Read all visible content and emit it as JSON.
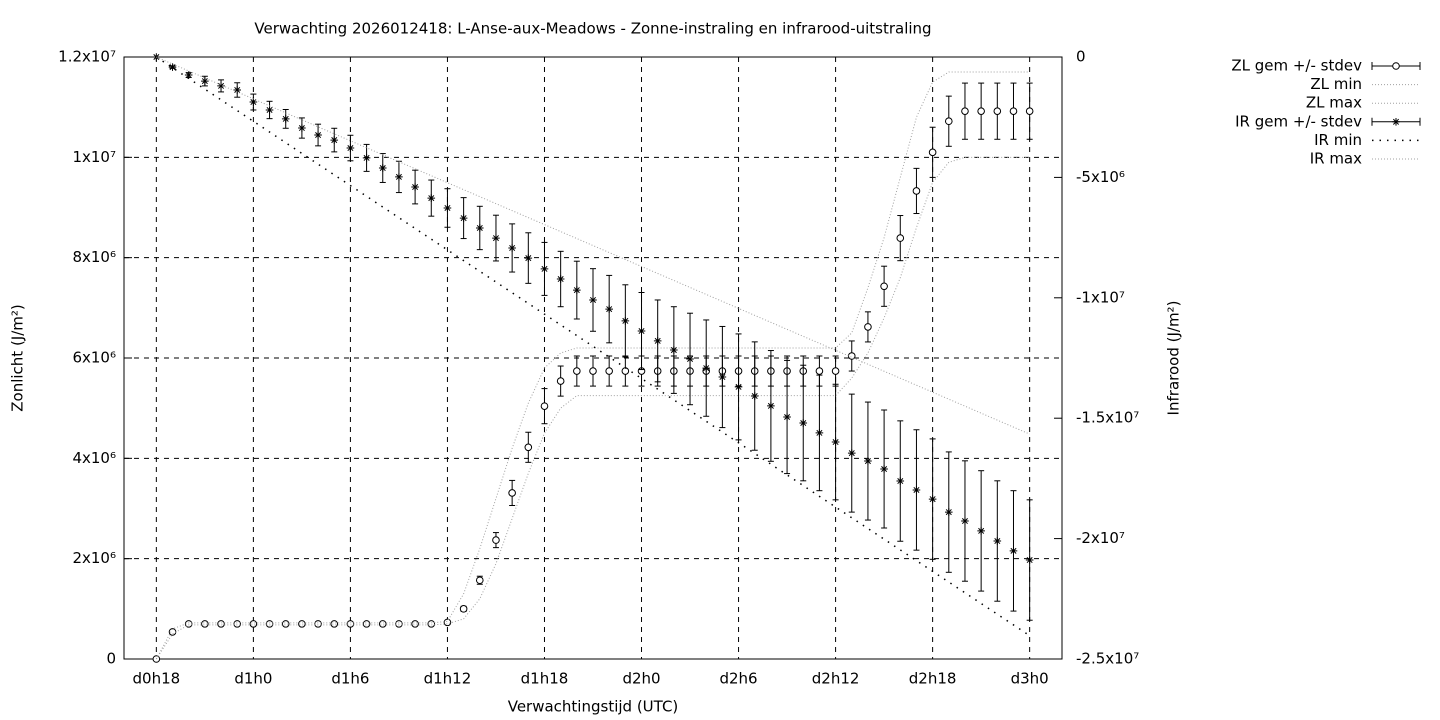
{
  "chart_data": {
    "type": "errorbar",
    "title": "Verwachting 2026012418: L-Anse-aux-Meadows - Zonne-instraling en infrarood-uitstraling",
    "xlabel": "Verwachtingstijd (UTC)",
    "ylabel": "Zonlicht (J/m²)",
    "y2label": "Infrarood (J/m²)",
    "grid": true,
    "legend": "outside-top-right",
    "xlim": [
      16,
      74
    ],
    "xticks": [
      {
        "value": 18,
        "label": "d0h18"
      },
      {
        "value": 24,
        "label": "d1h0"
      },
      {
        "value": 30,
        "label": "d1h6"
      },
      {
        "value": 36,
        "label": "d1h12"
      },
      {
        "value": 42,
        "label": "d1h18"
      },
      {
        "value": 48,
        "label": "d2h0"
      },
      {
        "value": 54,
        "label": "d2h6"
      },
      {
        "value": 60,
        "label": "d2h12"
      },
      {
        "value": 66,
        "label": "d2h18"
      },
      {
        "value": 72,
        "label": "d3h0"
      }
    ],
    "ylim": [
      0,
      12000000
    ],
    "yticks": [
      0,
      {
        "value": 2000000,
        "label": "2x10⁶"
      },
      {
        "value": 4000000,
        "label": "4x10⁶"
      },
      {
        "value": 6000000,
        "label": "6x10⁶"
      },
      {
        "value": 8000000,
        "label": "8x10⁶"
      },
      {
        "value": 10000000,
        "label": "1x10⁷"
      },
      {
        "value": 12000000,
        "label": "1.2x10⁷"
      }
    ],
    "y2lim": [
      -25000000,
      0
    ],
    "y2ticks": [
      0,
      {
        "value": -5000000,
        "label": "-5x10⁶"
      },
      {
        "value": -10000000,
        "label": "-1x10⁷"
      },
      {
        "value": -15000000,
        "label": "-1.5x10⁷"
      },
      {
        "value": -20000000,
        "label": "-2x10⁷"
      },
      {
        "value": -25000000,
        "label": "-2.5x10⁷"
      }
    ],
    "x": [
      18,
      19,
      20,
      21,
      22,
      23,
      24,
      25,
      26,
      27,
      28,
      29,
      30,
      31,
      32,
      33,
      34,
      35,
      36,
      37,
      38,
      39,
      40,
      41,
      42,
      43,
      44,
      45,
      46,
      47,
      48,
      49,
      50,
      51,
      52,
      53,
      54,
      55,
      56,
      57,
      58,
      59,
      60,
      61,
      62,
      63,
      64,
      65,
      66,
      67,
      68,
      69,
      70,
      71,
      72
    ],
    "series": [
      {
        "name": "ZL gem +/- stdev",
        "color": "#000000",
        "marker": "circle",
        "values": [
          0,
          540000,
          700000,
          700000,
          700000,
          700000,
          700000,
          700000,
          700000,
          700000,
          700000,
          700000,
          700000,
          700000,
          700000,
          700000,
          700000,
          700000,
          730000,
          1000000,
          1570000,
          2370000,
          3310000,
          4220000,
          5040000,
          5540000,
          5740000,
          5740000,
          5740000,
          5740000,
          5740000,
          5740000,
          5740000,
          5740000,
          5740000,
          5740000,
          5740000,
          5740000,
          5740000,
          5740000,
          5740000,
          5740000,
          5740000,
          6040000,
          6620000,
          7430000,
          8390000,
          9330000,
          10100000,
          10720000,
          10920000,
          10920000,
          10920000,
          10920000,
          10920000
        ],
        "errors": [
          0,
          20000,
          20000,
          20000,
          20000,
          20000,
          20000,
          20000,
          20000,
          20000,
          20000,
          20000,
          20000,
          20000,
          20000,
          20000,
          20000,
          20000,
          30000,
          50000,
          80000,
          150000,
          250000,
          300000,
          350000,
          300000,
          300000,
          300000,
          300000,
          300000,
          300000,
          300000,
          300000,
          300000,
          300000,
          300000,
          300000,
          300000,
          300000,
          300000,
          300000,
          300000,
          300000,
          300000,
          300000,
          400000,
          450000,
          450000,
          500000,
          500000,
          560000,
          560000,
          560000,
          560000,
          560000
        ]
      },
      {
        "name": "ZL min",
        "color": "#a0a0a0",
        "values": [
          0,
          500000,
          680000,
          680000,
          680000,
          680000,
          680000,
          680000,
          680000,
          680000,
          680000,
          680000,
          680000,
          680000,
          680000,
          680000,
          680000,
          680000,
          700000,
          800000,
          1200000,
          1900000,
          2800000,
          3700000,
          4500000,
          5000000,
          5250000,
          5250000,
          5250000,
          5250000,
          5250000,
          5250000,
          5250000,
          5250000,
          5250000,
          5250000,
          5250000,
          5250000,
          5250000,
          5250000,
          5250000,
          5250000,
          5250000,
          5600000,
          6100000,
          6800000,
          7600000,
          8600000,
          9500000,
          9900000,
          10000000,
          10000000,
          10000000,
          10000000,
          10000000
        ]
      },
      {
        "name": "ZL max",
        "color": "#a0a0a0",
        "values": [
          0,
          600000,
          720000,
          720000,
          720000,
          720000,
          720000,
          720000,
          720000,
          720000,
          720000,
          720000,
          720000,
          720000,
          720000,
          720000,
          720000,
          720000,
          750000,
          1300000,
          2200000,
          3200000,
          4200000,
          5100000,
          5800000,
          6100000,
          6200000,
          6200000,
          6200000,
          6200000,
          6200000,
          6200000,
          6200000,
          6200000,
          6200000,
          6200000,
          6200000,
          6200000,
          6200000,
          6200000,
          6200000,
          6200000,
          6200000,
          6500000,
          7400000,
          8400000,
          9600000,
          10800000,
          11500000,
          11700000,
          11700000,
          11700000,
          11700000,
          11700000,
          11700000
        ]
      },
      {
        "name": "IR gem +/- stdev",
        "color": "#000000",
        "marker": "asterisk",
        "axis": "y2",
        "values": [
          0,
          -420000,
          -750000,
          -1000000,
          -1200000,
          -1370000,
          -1870000,
          -2200000,
          -2570000,
          -2950000,
          -3240000,
          -3450000,
          -3780000,
          -4190000,
          -4610000,
          -4980000,
          -5400000,
          -5860000,
          -6270000,
          -6690000,
          -7100000,
          -7520000,
          -7930000,
          -8350000,
          -8800000,
          -9220000,
          -9680000,
          -10090000,
          -10470000,
          -10960000,
          -11380000,
          -11790000,
          -12170000,
          -12540000,
          -12920000,
          -13290000,
          -13700000,
          -14080000,
          -14490000,
          -14950000,
          -15200000,
          -15610000,
          -15990000,
          -16450000,
          -16780000,
          -17110000,
          -17610000,
          -17980000,
          -18360000,
          -18900000,
          -19270000,
          -19680000,
          -20100000,
          -20510000,
          -20890000
        ],
        "errors": [
          0,
          50000,
          100000,
          200000,
          250000,
          300000,
          330000,
          360000,
          390000,
          420000,
          450000,
          490000,
          530000,
          560000,
          600000,
          650000,
          700000,
          750000,
          800000,
          850000,
          900000,
          950000,
          1000000,
          1050000,
          1100000,
          1150000,
          1200000,
          1300000,
          1400000,
          1500000,
          1600000,
          1700000,
          1800000,
          1900000,
          2000000,
          2100000,
          2200000,
          2250000,
          2300000,
          2350000,
          2400000,
          2400000,
          2400000,
          2450000,
          2450000,
          2450000,
          2500000,
          2500000,
          2500000,
          2500000,
          2500000,
          2500000,
          2500000,
          2500000,
          2500000
        ]
      },
      {
        "name": "IR min",
        "color": "#000000",
        "axis": "y2",
        "values": [
          0,
          -445000,
          -890000,
          -1335000,
          -1780000,
          -2225000,
          -2670000,
          -3115000,
          -3560000,
          -4005000,
          -4450000,
          -4895000,
          -5340000,
          -5785000,
          -6230000,
          -6675000,
          -7120000,
          -7565000,
          -8010000,
          -8455000,
          -8900000,
          -9345000,
          -9790000,
          -10235000,
          -10680000,
          -11125000,
          -11570000,
          -12015000,
          -12460000,
          -12905000,
          -13350000,
          -13795000,
          -14240000,
          -14685000,
          -15130000,
          -15575000,
          -16020000,
          -16465000,
          -16910000,
          -17355000,
          -17800000,
          -18245000,
          -18690000,
          -19135000,
          -19580000,
          -20025000,
          -20470000,
          -20915000,
          -21360000,
          -21805000,
          -22250000,
          -22695000,
          -23140000,
          -23585000,
          -24030000
        ]
      },
      {
        "name": "IR max",
        "color": "#a0a0a0",
        "axis": "y2",
        "values": [
          0,
          -290000,
          -580000,
          -870000,
          -1160000,
          -1450000,
          -1740000,
          -2030000,
          -2320000,
          -2610000,
          -2900000,
          -3190000,
          -3480000,
          -3770000,
          -4060000,
          -4350000,
          -4640000,
          -4930000,
          -5220000,
          -5510000,
          -5800000,
          -6090000,
          -6380000,
          -6670000,
          -6960000,
          -7250000,
          -7540000,
          -7830000,
          -8120000,
          -8410000,
          -8700000,
          -8990000,
          -9280000,
          -9570000,
          -9860000,
          -10150000,
          -10440000,
          -10730000,
          -11020000,
          -11310000,
          -11600000,
          -11890000,
          -12180000,
          -12470000,
          -12760000,
          -13050000,
          -13340000,
          -13630000,
          -13920000,
          -14210000,
          -14500000,
          -14790000,
          -15080000,
          -15370000,
          -15660000
        ]
      }
    ]
  }
}
